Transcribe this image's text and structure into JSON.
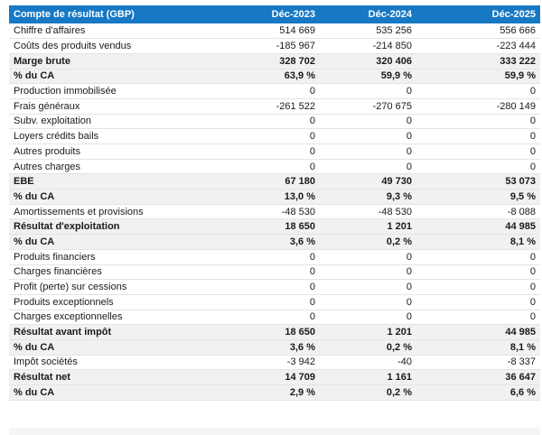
{
  "colors": {
    "header_bg": "#1778C4",
    "header_text": "#FFFFFF",
    "summary_row_bg": "#F1F1F1",
    "row_border": "#E4E4E4",
    "text": "#1A1A1A",
    "page_bg": "#FFFFFF",
    "bottom_strip": "#F5F5F5"
  },
  "table": {
    "title": "Compte de résultat (GBP)",
    "columns": [
      "Déc-2023",
      "Déc-2024",
      "Déc-2025"
    ],
    "rows": [
      {
        "label": "Chiffre d'affaires",
        "values": [
          "514 669",
          "535 256",
          "556 666"
        ],
        "bold": false
      },
      {
        "label": "Coûts des produits vendus",
        "values": [
          "-185 967",
          "-214 850",
          "-223 444"
        ],
        "bold": false
      },
      {
        "label": "Marge brute",
        "values": [
          "328 702",
          "320 406",
          "333 222"
        ],
        "bold": true
      },
      {
        "label": "% du CA",
        "values": [
          "63,9 %",
          "59,9 %",
          "59,9 %"
        ],
        "bold": true
      },
      {
        "label": "Production immobilisée",
        "values": [
          "0",
          "0",
          "0"
        ],
        "bold": false
      },
      {
        "label": "Frais généraux",
        "values": [
          "-261 522",
          "-270 675",
          "-280 149"
        ],
        "bold": false
      },
      {
        "label": "Subv. exploitation",
        "values": [
          "0",
          "0",
          "0"
        ],
        "bold": false
      },
      {
        "label": "Loyers crédits bails",
        "values": [
          "0",
          "0",
          "0"
        ],
        "bold": false
      },
      {
        "label": "Autres produits",
        "values": [
          "0",
          "0",
          "0"
        ],
        "bold": false
      },
      {
        "label": "Autres charges",
        "values": [
          "0",
          "0",
          "0"
        ],
        "bold": false
      },
      {
        "label": "EBE",
        "values": [
          "67 180",
          "49 730",
          "53 073"
        ],
        "bold": true
      },
      {
        "label": "% du CA",
        "values": [
          "13,0 %",
          "9,3 %",
          "9,5 %"
        ],
        "bold": true
      },
      {
        "label": "Amortissements et provisions",
        "values": [
          "-48 530",
          "-48 530",
          "-8 088"
        ],
        "bold": false
      },
      {
        "label": "Résultat d'exploitation",
        "values": [
          "18 650",
          "1 201",
          "44 985"
        ],
        "bold": true
      },
      {
        "label": "% du CA",
        "values": [
          "3,6 %",
          "0,2 %",
          "8,1 %"
        ],
        "bold": true
      },
      {
        "label": "Produits financiers",
        "values": [
          "0",
          "0",
          "0"
        ],
        "bold": false
      },
      {
        "label": "Charges financières",
        "values": [
          "0",
          "0",
          "0"
        ],
        "bold": false
      },
      {
        "label": "Profit (perte) sur cessions",
        "values": [
          "0",
          "0",
          "0"
        ],
        "bold": false
      },
      {
        "label": "Produits exceptionnels",
        "values": [
          "0",
          "0",
          "0"
        ],
        "bold": false
      },
      {
        "label": "Charges exceptionnelles",
        "values": [
          "0",
          "0",
          "0"
        ],
        "bold": false
      },
      {
        "label": "Résultat avant impôt",
        "values": [
          "18 650",
          "1 201",
          "44 985"
        ],
        "bold": true
      },
      {
        "label": "% du CA",
        "values": [
          "3,6 %",
          "0,2 %",
          "8,1 %"
        ],
        "bold": true
      },
      {
        "label": "Impôt sociétés",
        "values": [
          "-3 942",
          "-40",
          "-8 337"
        ],
        "bold": false
      },
      {
        "label": "Résultat net",
        "values": [
          "14 709",
          "1 161",
          "36 647"
        ],
        "bold": true
      },
      {
        "label": "% du CA",
        "values": [
          "2,9 %",
          "0,2 %",
          "6,6 %"
        ],
        "bold": true
      }
    ]
  }
}
